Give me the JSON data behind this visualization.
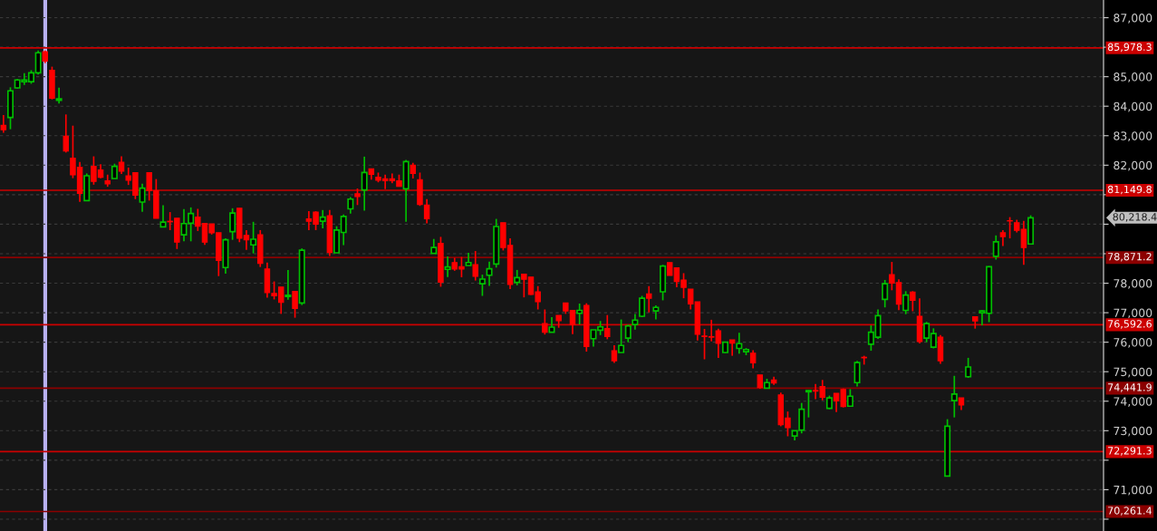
{
  "chart_data": {
    "type": "candlestick",
    "categories": [
      null,
      null,
      null,
      null,
      null,
      null,
      null,
      null,
      null,
      null,
      null,
      null,
      null,
      null,
      null,
      null,
      null,
      null,
      null,
      null,
      null,
      null,
      null,
      null,
      null,
      null,
      null,
      null,
      null,
      null,
      null,
      null,
      null,
      null,
      null,
      null,
      null,
      null,
      null,
      null,
      null,
      null,
      null,
      null,
      null,
      null,
      null,
      null,
      null,
      null,
      null,
      null,
      null,
      null,
      null,
      null,
      null,
      null,
      null,
      null,
      null,
      null,
      null,
      null,
      null,
      null,
      null,
      null,
      null,
      null,
      null,
      null,
      null,
      null,
      null,
      null,
      null,
      null,
      null,
      null,
      null,
      null,
      null,
      null,
      null,
      null,
      null,
      null,
      null,
      null,
      null,
      null,
      null,
      null,
      null,
      null,
      null,
      null,
      null,
      null,
      null,
      null,
      null,
      null,
      null,
      null,
      null,
      null,
      null,
      null,
      null,
      null,
      null,
      null,
      null,
      null,
      null,
      null,
      null,
      null,
      null,
      null,
      null,
      null,
      null,
      null,
      null,
      null,
      null,
      null,
      null,
      null,
      null,
      null,
      null,
      null,
      null,
      null,
      null,
      null,
      null,
      null,
      null,
      null,
      null,
      null,
      null,
      null,
      null,
      null,
      null,
      null,
      null,
      null,
      null,
      null,
      null,
      null,
      null
    ],
    "ohlc": [
      [
        83350,
        83700,
        83100,
        83200
      ],
      [
        83620,
        84640,
        83220,
        84520
      ],
      [
        84620,
        84920,
        84600,
        84890
      ],
      [
        84830,
        85120,
        84720,
        84890
      ],
      [
        84830,
        85220,
        84760,
        85130
      ],
      [
        85130,
        85890,
        85070,
        85810
      ],
      [
        85850,
        85890,
        85460,
        85530
      ],
      [
        85220,
        85340,
        84230,
        84270
      ],
      [
        84200,
        84630,
        84090,
        84250
      ],
      [
        82980,
        83720,
        82430,
        82480
      ],
      [
        82240,
        83340,
        81560,
        81670
      ],
      [
        81930,
        82110,
        80760,
        81040
      ],
      [
        80800,
        81720,
        80800,
        81640
      ],
      [
        81960,
        82300,
        81340,
        81450
      ],
      [
        81840,
        82030,
        81560,
        81590
      ],
      [
        81470,
        81680,
        81270,
        81370
      ],
      [
        81550,
        82050,
        81550,
        81960
      ],
      [
        82100,
        82300,
        81700,
        81800
      ],
      [
        81640,
        81920,
        81330,
        81490
      ],
      [
        81750,
        81750,
        80850,
        80980
      ],
      [
        80750,
        81370,
        80420,
        81220
      ],
      [
        81750,
        81750,
        80800,
        81140
      ],
      [
        81130,
        81530,
        80200,
        80200
      ],
      [
        79910,
        80640,
        79910,
        80070
      ],
      [
        80100,
        80410,
        79800,
        80080
      ],
      [
        80200,
        80200,
        79160,
        79390
      ],
      [
        79640,
        80510,
        79420,
        80020
      ],
      [
        80030,
        80570,
        79420,
        80360
      ],
      [
        80240,
        80520,
        79770,
        79930
      ],
      [
        80030,
        80030,
        79300,
        79390
      ],
      [
        80010,
        80010,
        79650,
        79710
      ],
      [
        79710,
        79710,
        78240,
        78770
      ],
      [
        78530,
        79520,
        78320,
        79470
      ],
      [
        79750,
        80540,
        79470,
        80380
      ],
      [
        80540,
        80540,
        79390,
        79520
      ],
      [
        79620,
        79800,
        79130,
        79470
      ],
      [
        79300,
        80080,
        79010,
        79490
      ],
      [
        79640,
        79800,
        78550,
        78670
      ],
      [
        78480,
        78700,
        77510,
        77680
      ],
      [
        77650,
        78060,
        77450,
        77570
      ],
      [
        77870,
        77870,
        76960,
        77350
      ],
      [
        77550,
        78450,
        77440,
        77590
      ],
      [
        77720,
        77720,
        76830,
        77140
      ],
      [
        77330,
        79180,
        77260,
        79120
      ],
      [
        80180,
        80440,
        79800,
        80100
      ],
      [
        80410,
        80440,
        79800,
        80000
      ],
      [
        80100,
        80480,
        79860,
        80240
      ],
      [
        80290,
        80480,
        78920,
        79040
      ],
      [
        79030,
        79930,
        79030,
        79800
      ],
      [
        79720,
        80330,
        79290,
        80260
      ],
      [
        80520,
        80920,
        80360,
        80850
      ],
      [
        81030,
        81210,
        80650,
        80940
      ],
      [
        81160,
        82290,
        80460,
        81750
      ],
      [
        81880,
        81880,
        81510,
        81690
      ],
      [
        81590,
        81750,
        81420,
        81490
      ],
      [
        81540,
        81680,
        81190,
        81470
      ],
      [
        81540,
        81720,
        81390,
        81470
      ],
      [
        81470,
        81680,
        81280,
        81280
      ],
      [
        81200,
        82180,
        80080,
        82120
      ],
      [
        82000,
        82080,
        81550,
        81720
      ],
      [
        81510,
        81750,
        80620,
        80670
      ],
      [
        80650,
        80850,
        80030,
        80180
      ],
      [
        79010,
        79500,
        79010,
        79210
      ],
      [
        79350,
        79570,
        77880,
        78030
      ],
      [
        78470,
        78910,
        78210,
        78550
      ],
      [
        78700,
        78860,
        78420,
        78480
      ],
      [
        78560,
        78890,
        78200,
        78480
      ],
      [
        78600,
        79030,
        78600,
        78700
      ],
      [
        78630,
        79090,
        78090,
        78230
      ],
      [
        77980,
        78290,
        77570,
        78140
      ],
      [
        78270,
        78730,
        77910,
        78490
      ],
      [
        78650,
        80180,
        78530,
        79920
      ],
      [
        80050,
        80050,
        79110,
        79210
      ],
      [
        79280,
        79520,
        77800,
        77960
      ],
      [
        78030,
        78450,
        77930,
        78190
      ],
      [
        78310,
        78310,
        77520,
        78130
      ],
      [
        78210,
        78210,
        77600,
        77620
      ],
      [
        77710,
        77900,
        77110,
        77370
      ],
      [
        76630,
        77110,
        76260,
        76340
      ],
      [
        76340,
        76850,
        76340,
        76510
      ],
      [
        76910,
        76910,
        76490,
        76730
      ],
      [
        77330,
        77330,
        76960,
        77060
      ],
      [
        77080,
        77080,
        76270,
        76590
      ],
      [
        76980,
        77310,
        76600,
        77080
      ],
      [
        77250,
        77320,
        75680,
        75850
      ],
      [
        76120,
        76420,
        75850,
        76420
      ],
      [
        76410,
        76720,
        76240,
        76520
      ],
      [
        76460,
        76920,
        76100,
        76190
      ],
      [
        75710,
        75900,
        75300,
        75370
      ],
      [
        75650,
        76770,
        75650,
        75890
      ],
      [
        76140,
        76600,
        76000,
        76550
      ],
      [
        76600,
        76960,
        76430,
        76750
      ],
      [
        76880,
        77570,
        76850,
        77490
      ],
      [
        77640,
        77900,
        77010,
        77490
      ],
      [
        77060,
        77250,
        76770,
        77180
      ],
      [
        77710,
        78620,
        77420,
        78580
      ],
      [
        78700,
        78700,
        78260,
        78260
      ],
      [
        78520,
        78520,
        77860,
        78060
      ],
      [
        78110,
        78340,
        77490,
        77860
      ],
      [
        77800,
        77800,
        77110,
        77300
      ],
      [
        77370,
        77370,
        76060,
        76270
      ],
      [
        76210,
        76450,
        75420,
        76190
      ],
      [
        76190,
        76760,
        76030,
        76170
      ],
      [
        76390,
        76460,
        75470,
        75960
      ],
      [
        75650,
        76000,
        75630,
        76000
      ],
      [
        76080,
        76080,
        75540,
        75970
      ],
      [
        75790,
        76320,
        75610,
        75950
      ],
      [
        75680,
        75800,
        75560,
        75750
      ],
      [
        75630,
        75730,
        75110,
        75300
      ],
      [
        74890,
        74890,
        74420,
        74460
      ],
      [
        74440,
        74760,
        74440,
        74630
      ],
      [
        74720,
        74830,
        74550,
        74620
      ],
      [
        74210,
        74290,
        73150,
        73200
      ],
      [
        73430,
        73650,
        72810,
        73100
      ],
      [
        72820,
        73000,
        72670,
        73000
      ],
      [
        73020,
        73940,
        72910,
        73730
      ],
      [
        74320,
        74370,
        73450,
        74360
      ],
      [
        74370,
        74580,
        74070,
        74340
      ],
      [
        74500,
        74720,
        74030,
        74130
      ],
      [
        73760,
        74190,
        73730,
        74110
      ],
      [
        74270,
        74270,
        73630,
        74010
      ],
      [
        74400,
        74430,
        73790,
        73820
      ],
      [
        73830,
        74410,
        73830,
        74170
      ],
      [
        74630,
        75370,
        74500,
        75310
      ],
      [
        75490,
        75540,
        75240,
        75470
      ],
      [
        75930,
        76570,
        75710,
        76340
      ],
      [
        76170,
        77110,
        76110,
        76900
      ],
      [
        77450,
        78110,
        77180,
        77980
      ],
      [
        78290,
        78720,
        77760,
        78000
      ],
      [
        78020,
        78130,
        77090,
        77290
      ],
      [
        77080,
        77730,
        76950,
        77600
      ],
      [
        77700,
        77730,
        77050,
        77420
      ],
      [
        76880,
        77490,
        75960,
        76020
      ],
      [
        76140,
        76690,
        76000,
        76630
      ],
      [
        75830,
        76470,
        75790,
        76290
      ],
      [
        76170,
        76240,
        75270,
        75370
      ],
      [
        71460,
        73390,
        71460,
        73150
      ],
      [
        74020,
        74860,
        73450,
        74240
      ],
      [
        74110,
        74110,
        73700,
        73870
      ],
      [
        74830,
        75470,
        74790,
        75160
      ],
      [
        76860,
        76860,
        76460,
        76720
      ],
      [
        77000,
        77080,
        76570,
        77060
      ],
      [
        76980,
        78580,
        76680,
        78560
      ],
      [
        78910,
        79620,
        78800,
        79400
      ],
      [
        79710,
        79800,
        79260,
        79580
      ],
      [
        80120,
        80240,
        79520,
        80110
      ],
      [
        80050,
        80150,
        79720,
        79790
      ],
      [
        79830,
        80110,
        78620,
        79210
      ],
      [
        79330,
        80300,
        79330,
        80218.4
      ],
      null,
      null,
      null,
      null,
      null,
      null,
      null,
      null,
      null,
      null
    ],
    "ylim": [
      69600,
      87600
    ],
    "yticks": [
      {
        "value": 70000,
        "label": null
      },
      {
        "value": 71000,
        "label": "71,000"
      },
      {
        "value": 72000,
        "label": null
      },
      {
        "value": 73000,
        "label": "73,000"
      },
      {
        "value": 74000,
        "label": "74,000"
      },
      {
        "value": 75000,
        "label": "75,000"
      },
      {
        "value": 76000,
        "label": "76,000"
      },
      {
        "value": 77000,
        "label": "77,000"
      },
      {
        "value": 78000,
        "label": "78,000"
      },
      {
        "value": 79000,
        "label": null
      },
      {
        "value": 80000,
        "label": null
      },
      {
        "value": 81000,
        "label": null
      },
      {
        "value": 82000,
        "label": "82,000"
      },
      {
        "value": 83000,
        "label": "83,000"
      },
      {
        "value": 84000,
        "label": "84,000"
      },
      {
        "value": 85000,
        "label": "85,000"
      },
      {
        "value": 86000,
        "label": null
      },
      {
        "value": 87000,
        "label": "87,000"
      }
    ],
    "grid": "y",
    "ref_lines": [
      {
        "axis": "y",
        "value": 85978.3,
        "label": "85,978.3",
        "color": "#cc0000"
      },
      {
        "axis": "y",
        "value": 81149.8,
        "label": "81,149.8",
        "color": "#cc0000"
      },
      {
        "axis": "y",
        "value": 78871.2,
        "label": "78,871.2",
        "color": "#8b0000"
      },
      {
        "axis": "y",
        "value": 76592.6,
        "label": "76,592.6",
        "color": "#cc0000"
      },
      {
        "axis": "y",
        "value": 74441.9,
        "label": "74,441.9",
        "color": "#8b0000"
      },
      {
        "axis": "y",
        "value": 72291.3,
        "label": "72,291.3",
        "color": "#cc0000"
      },
      {
        "axis": "y",
        "value": 70261.4,
        "label": "70,261.4",
        "color": "#8b0000"
      }
    ],
    "annotations": [
      "80,218.4"
    ]
  }
}
